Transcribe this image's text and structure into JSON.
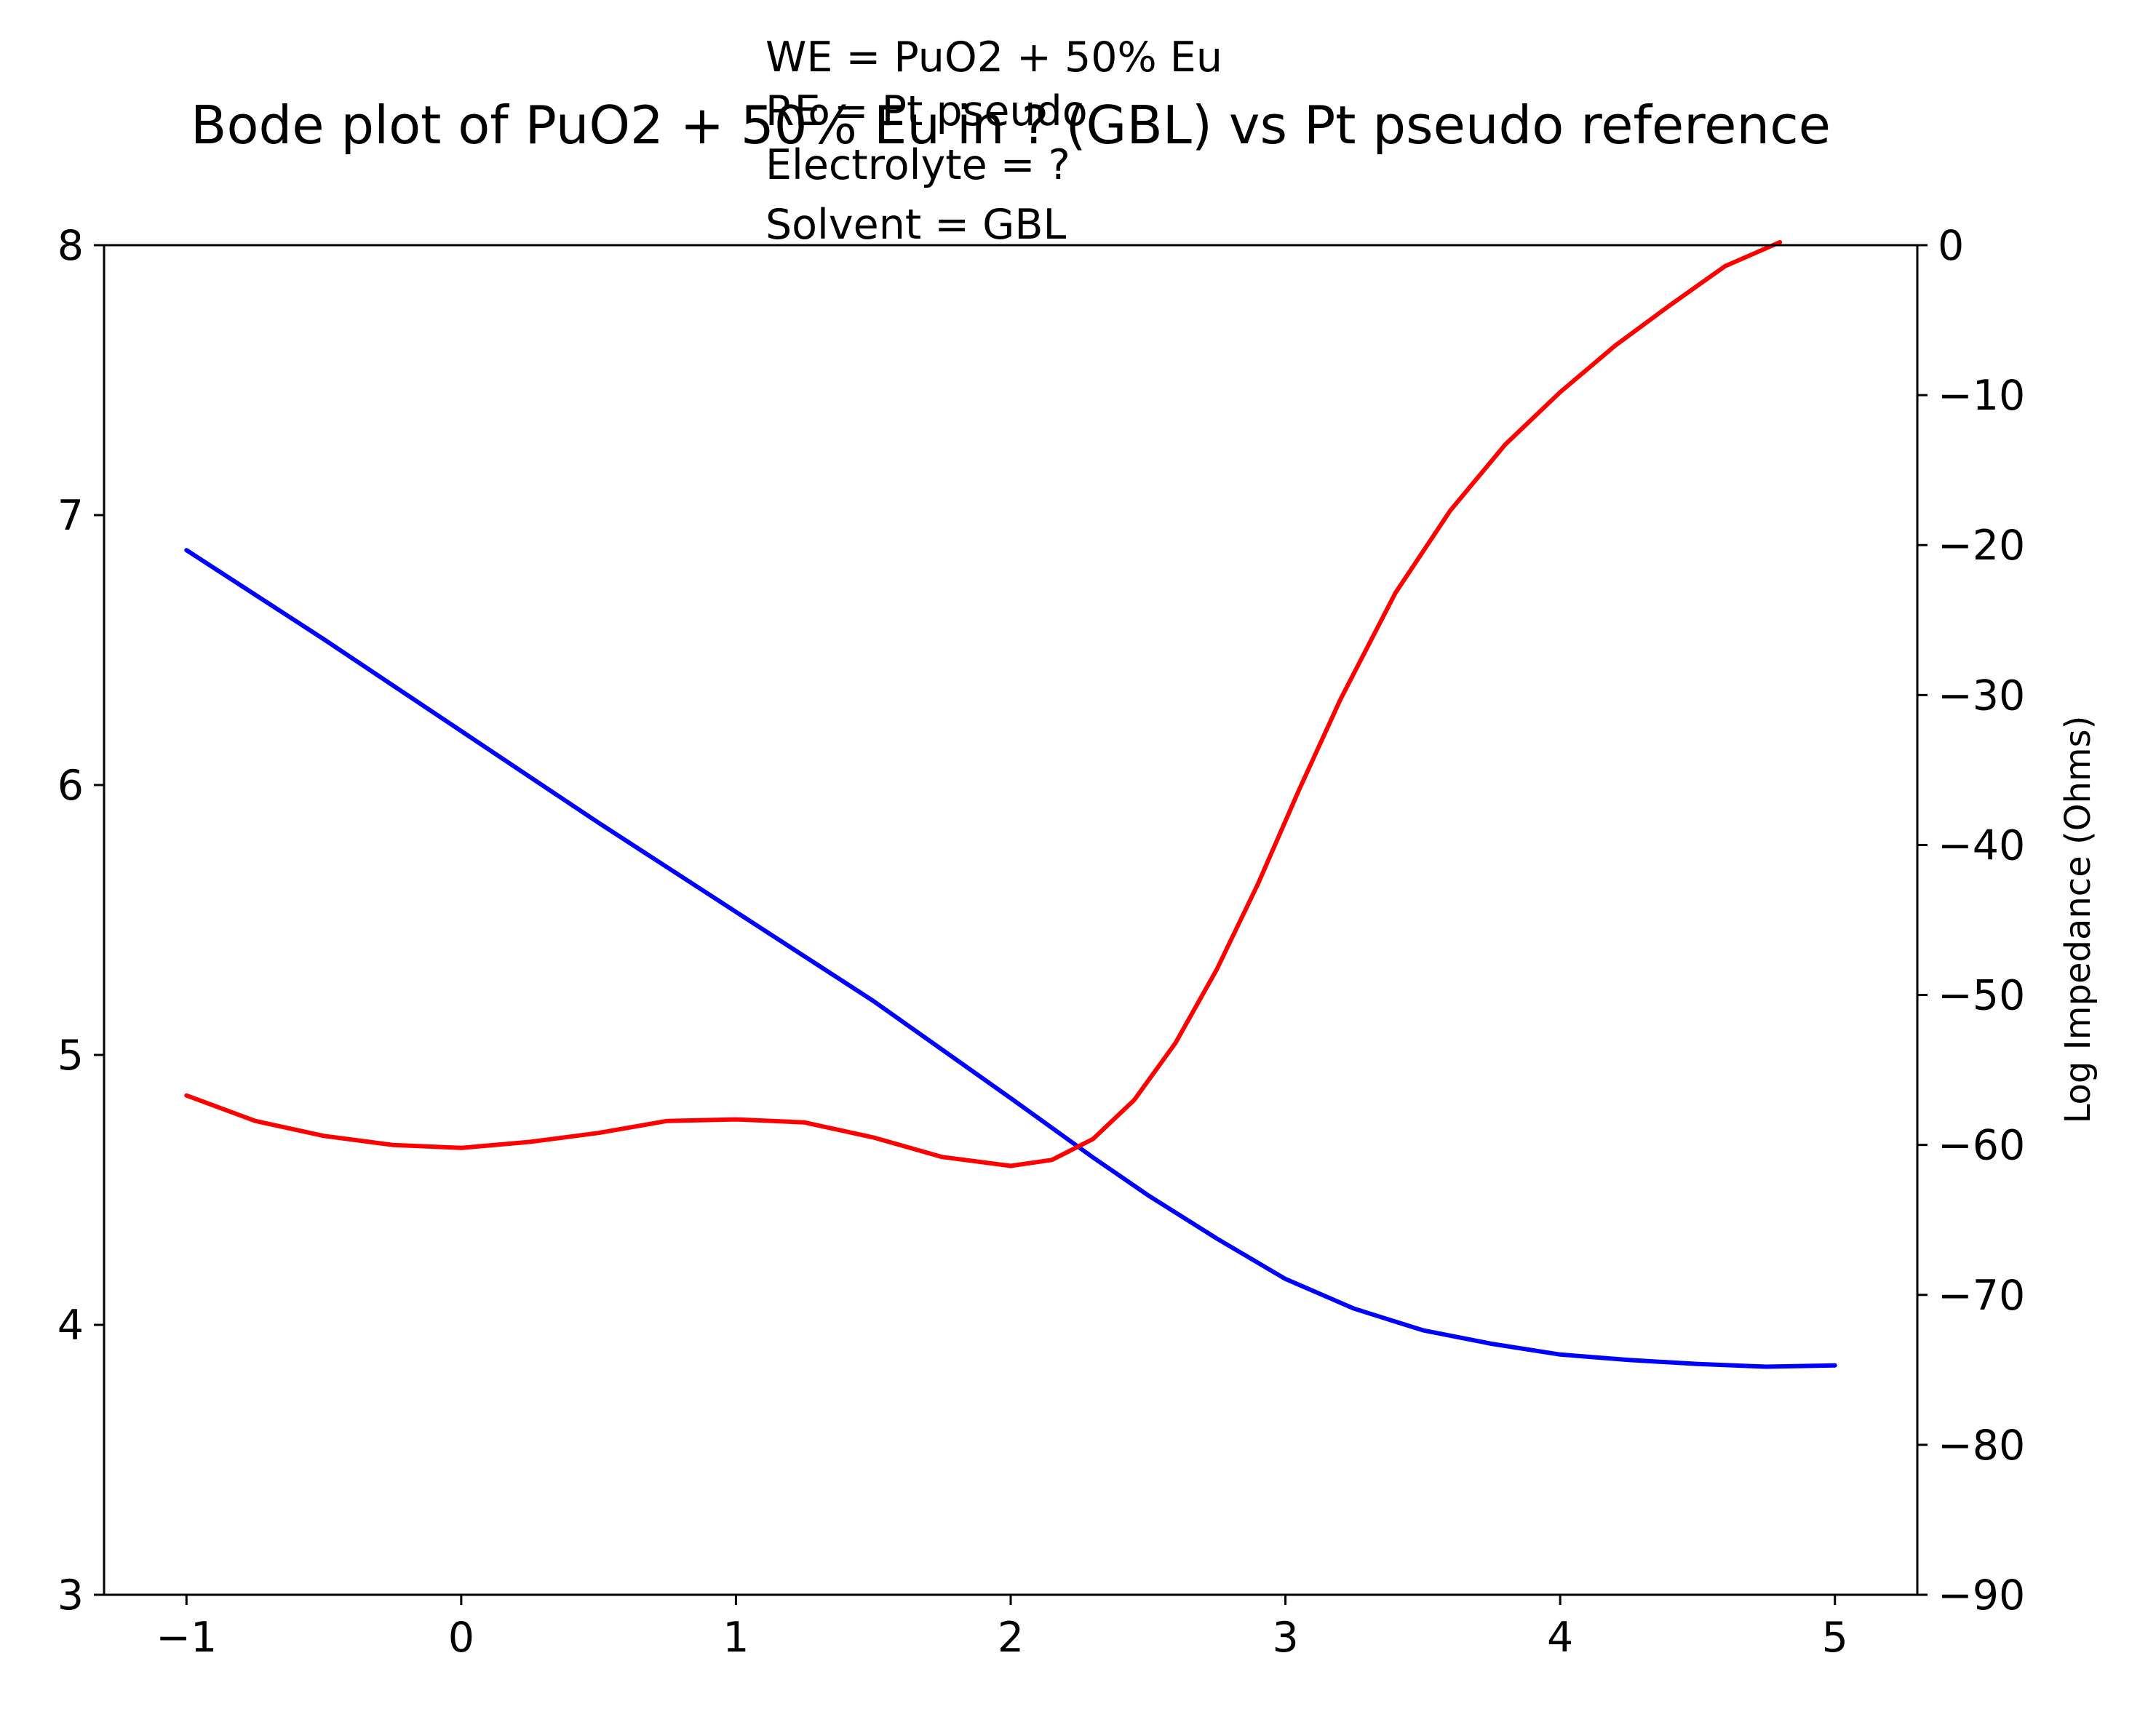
{
  "chart_data": {
    "type": "line",
    "title": "Bode plot of PuO2 + 50% Eu in ? (GBL) vs Pt pseudo reference",
    "annotation": [
      "WE = PuO2 + 50% Eu",
      "RE = Pt pseudo",
      "Electrolyte = ?",
      "Solvent = GBL"
    ],
    "xlabel": "",
    "ylabel_left": "",
    "ylabel_right": "Log Impedance (Ohms)",
    "xlim": [
      -1.3,
      5.3
    ],
    "ylim_left": [
      3,
      8
    ],
    "ylim_right": [
      -90,
      0
    ],
    "xticks": [
      -1,
      0,
      1,
      2,
      3,
      4,
      5
    ],
    "yticks_left": [
      3,
      4,
      5,
      6,
      7,
      8
    ],
    "yticks_right": [
      -90,
      -80,
      -70,
      -60,
      -50,
      -40,
      -30,
      -20,
      -10,
      0
    ],
    "grid": false,
    "series": [
      {
        "axis": "left",
        "color": "#0000ff",
        "x": [
          -1.0,
          -0.5,
          0.0,
          0.5,
          1.0,
          1.5,
          2.0,
          2.3,
          2.5,
          2.75,
          3.0,
          3.25,
          3.5,
          3.75,
          4.0,
          4.25,
          4.5,
          4.75,
          5.0
        ],
        "y": [
          6.87,
          6.54,
          6.2,
          5.86,
          5.53,
          5.2,
          4.84,
          4.62,
          4.48,
          4.32,
          4.17,
          4.06,
          3.98,
          3.93,
          3.89,
          3.87,
          3.855,
          3.845,
          3.85
        ]
      },
      {
        "axis": "right",
        "color": "#ff0000",
        "x": [
          -1.0,
          -0.75,
          -0.5,
          -0.25,
          0.0,
          0.25,
          0.5,
          0.75,
          1.0,
          1.25,
          1.5,
          1.75,
          2.0,
          2.15,
          2.3,
          2.45,
          2.6,
          2.75,
          2.9,
          3.05,
          3.2,
          3.4,
          3.6,
          3.8,
          4.0,
          4.2,
          4.4,
          4.6,
          4.8
        ],
        "y": [
          -56.7,
          -58.4,
          -59.4,
          -60.0,
          -60.2,
          -59.8,
          -59.2,
          -58.4,
          -58.3,
          -58.5,
          -59.5,
          -60.8,
          -61.4,
          -61.0,
          -59.6,
          -57.0,
          -53.2,
          -48.3,
          -42.6,
          -36.3,
          -30.3,
          -23.2,
          -17.7,
          -13.3,
          -9.8,
          -6.7,
          -4.0,
          -1.4,
          0.2
        ]
      }
    ]
  }
}
